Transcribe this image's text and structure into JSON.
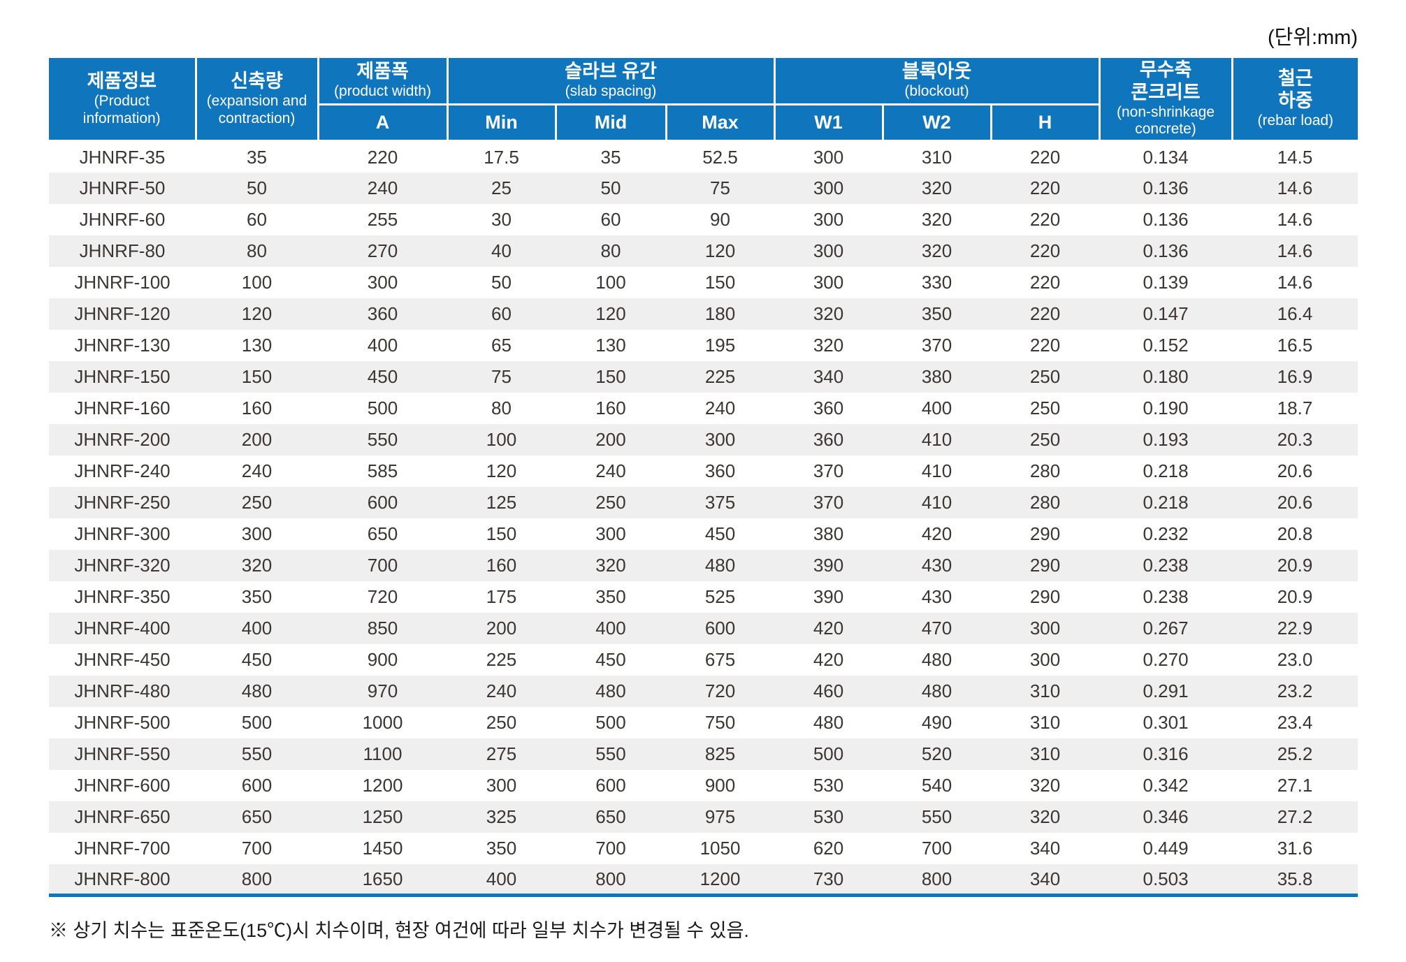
{
  "unit_label": "(단위:mm)",
  "colors": {
    "header_blue": "#0f76be",
    "row_alt_gray": "#efefef",
    "body_text": "#3b3533",
    "bottom_rule_blue": "#0f76be"
  },
  "table": {
    "header": {
      "product_info_ko": "제품정보",
      "product_info_en": "(Product\ninformation)",
      "expansion_ko": "신축량",
      "expansion_en": "(expansion and\ncontraction)",
      "product_width_ko": "제품폭",
      "product_width_en": "(product width)",
      "product_width_sub": "A",
      "slab_spacing_ko": "슬라브 유간",
      "slab_spacing_en": "(slab spacing)",
      "slab_sub": [
        "Min",
        "Mid",
        "Max"
      ],
      "blockout_ko": "블록아웃",
      "blockout_en": "(blockout)",
      "blockout_sub": [
        "W1",
        "W2",
        "H"
      ],
      "concrete_ko": "무수축\n콘크리트",
      "concrete_en": "(non-shrinkage\nconcrete)",
      "rebar_ko": "철근\n하중",
      "rebar_en": "(rebar load)"
    },
    "columns": [
      "product-id",
      "expansion",
      "width-a",
      "slab-min",
      "slab-mid",
      "slab-max",
      "blockout-w1",
      "blockout-w2",
      "blockout-h",
      "concrete",
      "rebar-load"
    ],
    "rows": [
      [
        "JHNRF-35",
        "35",
        "220",
        "17.5",
        "35",
        "52.5",
        "300",
        "310",
        "220",
        "0.134",
        "14.5"
      ],
      [
        "JHNRF-50",
        "50",
        "240",
        "25",
        "50",
        "75",
        "300",
        "320",
        "220",
        "0.136",
        "14.6"
      ],
      [
        "JHNRF-60",
        "60",
        "255",
        "30",
        "60",
        "90",
        "300",
        "320",
        "220",
        "0.136",
        "14.6"
      ],
      [
        "JHNRF-80",
        "80",
        "270",
        "40",
        "80",
        "120",
        "300",
        "320",
        "220",
        "0.136",
        "14.6"
      ],
      [
        "JHNRF-100",
        "100",
        "300",
        "50",
        "100",
        "150",
        "300",
        "330",
        "220",
        "0.139",
        "14.6"
      ],
      [
        "JHNRF-120",
        "120",
        "360",
        "60",
        "120",
        "180",
        "320",
        "350",
        "220",
        "0.147",
        "16.4"
      ],
      [
        "JHNRF-130",
        "130",
        "400",
        "65",
        "130",
        "195",
        "320",
        "370",
        "220",
        "0.152",
        "16.5"
      ],
      [
        "JHNRF-150",
        "150",
        "450",
        "75",
        "150",
        "225",
        "340",
        "380",
        "250",
        "0.180",
        "16.9"
      ],
      [
        "JHNRF-160",
        "160",
        "500",
        "80",
        "160",
        "240",
        "360",
        "400",
        "250",
        "0.190",
        "18.7"
      ],
      [
        "JHNRF-200",
        "200",
        "550",
        "100",
        "200",
        "300",
        "360",
        "410",
        "250",
        "0.193",
        "20.3"
      ],
      [
        "JHNRF-240",
        "240",
        "585",
        "120",
        "240",
        "360",
        "370",
        "410",
        "280",
        "0.218",
        "20.6"
      ],
      [
        "JHNRF-250",
        "250",
        "600",
        "125",
        "250",
        "375",
        "370",
        "410",
        "280",
        "0.218",
        "20.6"
      ],
      [
        "JHNRF-300",
        "300",
        "650",
        "150",
        "300",
        "450",
        "380",
        "420",
        "290",
        "0.232",
        "20.8"
      ],
      [
        "JHNRF-320",
        "320",
        "700",
        "160",
        "320",
        "480",
        "390",
        "430",
        "290",
        "0.238",
        "20.9"
      ],
      [
        "JHNRF-350",
        "350",
        "720",
        "175",
        "350",
        "525",
        "390",
        "430",
        "290",
        "0.238",
        "20.9"
      ],
      [
        "JHNRF-400",
        "400",
        "850",
        "200",
        "400",
        "600",
        "420",
        "470",
        "300",
        "0.267",
        "22.9"
      ],
      [
        "JHNRF-450",
        "450",
        "900",
        "225",
        "450",
        "675",
        "420",
        "480",
        "300",
        "0.270",
        "23.0"
      ],
      [
        "JHNRF-480",
        "480",
        "970",
        "240",
        "480",
        "720",
        "460",
        "480",
        "310",
        "0.291",
        "23.2"
      ],
      [
        "JHNRF-500",
        "500",
        "1000",
        "250",
        "500",
        "750",
        "480",
        "490",
        "310",
        "0.301",
        "23.4"
      ],
      [
        "JHNRF-550",
        "550",
        "1100",
        "275",
        "550",
        "825",
        "500",
        "520",
        "310",
        "0.316",
        "25.2"
      ],
      [
        "JHNRF-600",
        "600",
        "1200",
        "300",
        "600",
        "900",
        "530",
        "540",
        "320",
        "0.342",
        "27.1"
      ],
      [
        "JHNRF-650",
        "650",
        "1250",
        "325",
        "650",
        "975",
        "530",
        "550",
        "320",
        "0.346",
        "27.2"
      ],
      [
        "JHNRF-700",
        "700",
        "1450",
        "350",
        "700",
        "1050",
        "620",
        "700",
        "340",
        "0.449",
        "31.6"
      ],
      [
        "JHNRF-800",
        "800",
        "1650",
        "400",
        "800",
        "1200",
        "730",
        "800",
        "340",
        "0.503",
        "35.8"
      ]
    ]
  },
  "footnote": "※ 상기 치수는 표준온도(15℃)시 치수이며, 현장 여건에 따라 일부 치수가 변경될 수 있음."
}
